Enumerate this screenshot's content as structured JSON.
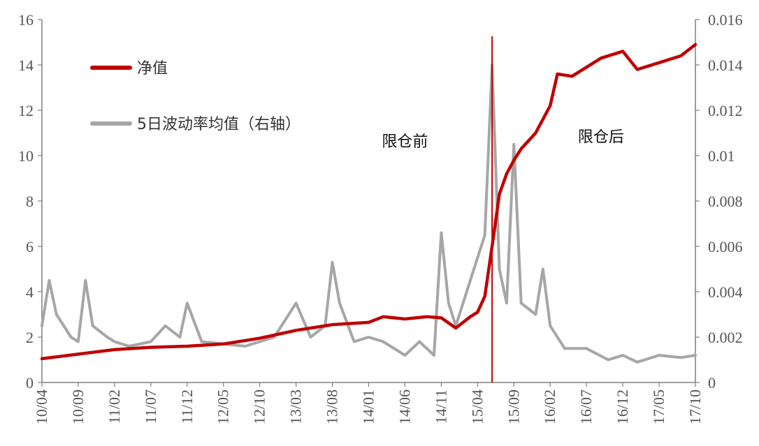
{
  "chart_data": {
    "type": "line",
    "title": "",
    "x_categories": [
      "10/04",
      "10/09",
      "11/02",
      "11/07",
      "11/12",
      "12/05",
      "12/10",
      "13/03",
      "13/08",
      "14/01",
      "14/06",
      "14/11",
      "15/04",
      "15/09",
      "16/02",
      "16/07",
      "16/12",
      "17/05",
      "17/10"
    ],
    "ylim_left": [
      0,
      16
    ],
    "yticks_left": [
      "0",
      "2",
      "4",
      "6",
      "8",
      "10",
      "12",
      "14",
      "16"
    ],
    "ylim_right": [
      0,
      0.016
    ],
    "yticks_right": [
      "0",
      "0.002",
      "0.004",
      "0.006",
      "0.008",
      "0.01",
      "0.012",
      "0.014",
      "0.016"
    ],
    "grid": false,
    "legend_position": "top-left",
    "series": [
      {
        "name": "净值",
        "axis": "left",
        "color": "#c00000",
        "x": [
          "10/04",
          "10/09",
          "11/02",
          "11/07",
          "11/12",
          "12/05",
          "12/10",
          "13/03",
          "13/08",
          "14/01",
          "14/03",
          "14/06",
          "14/09",
          "14/11",
          "15/01",
          "15/03",
          "15/04",
          "15/05",
          "15/06",
          "15/07",
          "15/08",
          "15/09",
          "15/10",
          "15/12",
          "16/02",
          "16/03",
          "16/05",
          "16/07",
          "16/09",
          "16/12",
          "17/02",
          "17/05",
          "17/08",
          "17/10"
        ],
        "values": [
          1.05,
          1.25,
          1.45,
          1.55,
          1.6,
          1.7,
          1.95,
          2.3,
          2.55,
          2.65,
          2.9,
          2.8,
          2.9,
          2.85,
          2.4,
          2.9,
          3.1,
          3.8,
          6.0,
          8.3,
          9.2,
          9.8,
          10.3,
          11.0,
          12.2,
          13.6,
          13.5,
          13.9,
          14.3,
          14.6,
          13.8,
          14.1,
          14.4,
          14.9
        ]
      },
      {
        "name": "5日波动率均值（右轴）",
        "axis": "right",
        "color": "#a6a6a6",
        "x": [
          "10/04",
          "10/05",
          "10/06",
          "10/08",
          "10/09",
          "10/10",
          "10/11",
          "11/01",
          "11/02",
          "11/04",
          "11/07",
          "11/09",
          "11/11",
          "11/12",
          "12/02",
          "12/05",
          "12/08",
          "12/10",
          "12/12",
          "13/01",
          "13/03",
          "13/05",
          "13/07",
          "13/08",
          "13/09",
          "13/11",
          "14/01",
          "14/03",
          "14/06",
          "14/08",
          "14/10",
          "14/11",
          "14/12",
          "15/01",
          "15/03",
          "15/05",
          "15/06",
          "15/07",
          "15/08",
          "15/09",
          "15/10",
          "15/12",
          "16/01",
          "16/02",
          "16/04",
          "16/07",
          "16/10",
          "16/12",
          "17/02",
          "17/05",
          "17/08",
          "17/10"
        ],
        "values": [
          0.0025,
          0.0045,
          0.003,
          0.002,
          0.0018,
          0.0045,
          0.0025,
          0.002,
          0.0018,
          0.0016,
          0.0018,
          0.0025,
          0.002,
          0.0035,
          0.0018,
          0.0017,
          0.0016,
          0.0018,
          0.002,
          0.0025,
          0.0035,
          0.002,
          0.0025,
          0.0053,
          0.0035,
          0.0018,
          0.002,
          0.0018,
          0.0012,
          0.0018,
          0.0012,
          0.0066,
          0.0035,
          0.0025,
          0.0045,
          0.0065,
          0.014,
          0.005,
          0.0035,
          0.0105,
          0.0035,
          0.003,
          0.005,
          0.0025,
          0.0015,
          0.0015,
          0.001,
          0.0012,
          0.0009,
          0.0012,
          0.0011,
          0.0012
        ]
      }
    ],
    "annotations": [
      {
        "text": "限仓前",
        "x": "14/06",
        "y": 10.4
      },
      {
        "text": "限仓后",
        "x": "16/09",
        "y": 10.6
      }
    ],
    "reference_line": {
      "x": "15/06",
      "color": "#c00000"
    }
  }
}
